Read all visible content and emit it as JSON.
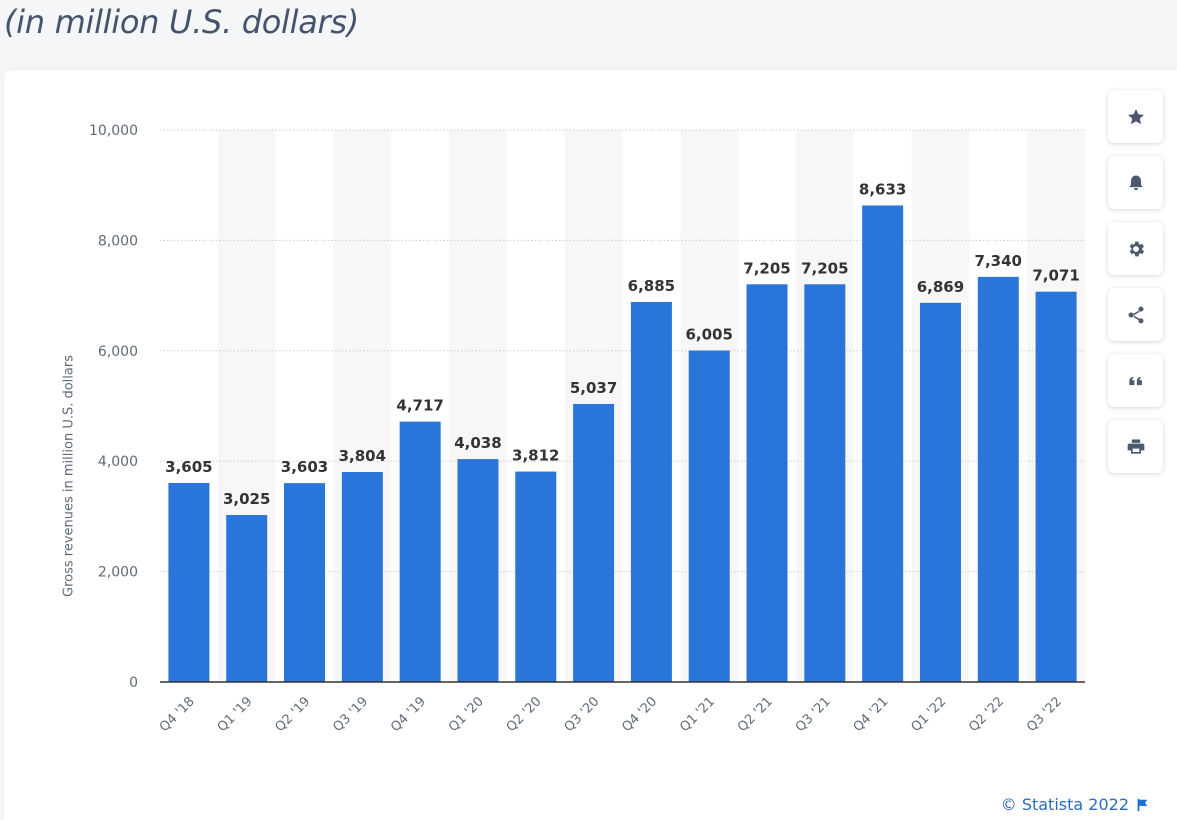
{
  "header": {
    "subtitle": "(in million U.S. dollars)"
  },
  "toolbar": {
    "icons": [
      "star-icon",
      "bell-icon",
      "gear-icon",
      "share-icon",
      "quote-icon",
      "print-icon"
    ]
  },
  "footer": {
    "credit": "© Statista 2022"
  },
  "colors": {
    "bar": "#2975d9",
    "band": "#f7f7f7",
    "grid": "#cfcfcf",
    "axis": "#333333",
    "label": "#333333",
    "tick": "#5f6b78"
  },
  "chart_data": {
    "type": "bar",
    "title": "",
    "xlabel": "",
    "ylabel": "Gross revenues in million U.S. dollars",
    "categories": [
      "Q4 '18",
      "Q1 '19",
      "Q2 '19",
      "Q3 '19",
      "Q4 '19",
      "Q1 '20",
      "Q2 '20",
      "Q3 '20",
      "Q4 '20",
      "Q1 '21",
      "Q2 '21",
      "Q3 '21",
      "Q4 '21",
      "Q1 '22",
      "Q2 '22",
      "Q3 '22"
    ],
    "values": [
      3605,
      3025,
      3603,
      3804,
      4717,
      4038,
      3812,
      5037,
      6885,
      6005,
      7205,
      7205,
      8633,
      6869,
      7340,
      7071
    ],
    "value_labels": [
      "3,605",
      "3,025",
      "3,603",
      "3,804",
      "4,717",
      "4,038",
      "3,812",
      "5,037",
      "6,885",
      "6,005",
      "7,205",
      "7,205",
      "8,633",
      "6,869",
      "7,340",
      "7,071"
    ],
    "yticks": [
      0,
      2000,
      4000,
      6000,
      8000,
      10000
    ],
    "ytick_labels": [
      "0",
      "2,000",
      "4,000",
      "6,000",
      "8,000",
      "10,000"
    ],
    "ylim": [
      0,
      10000
    ],
    "grid": true,
    "alternating_bands": true
  }
}
